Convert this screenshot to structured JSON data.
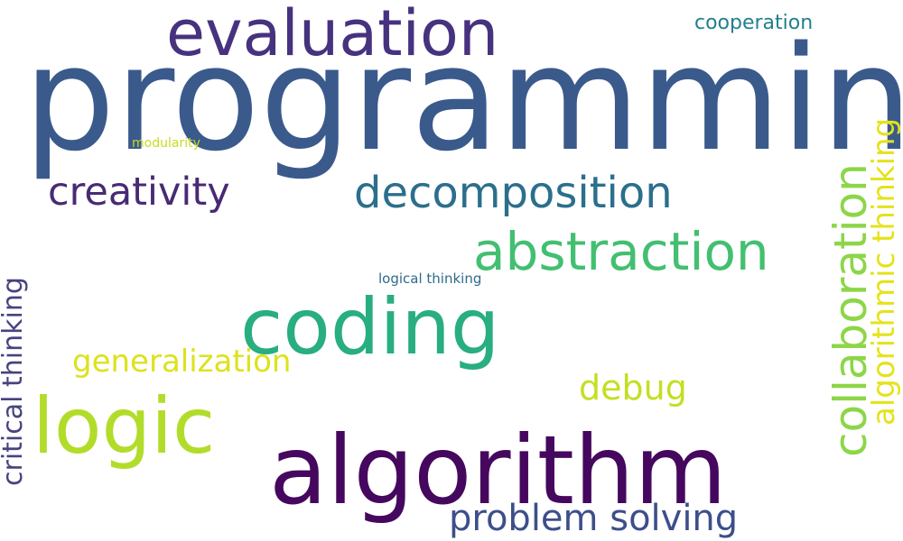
{
  "words": {
    "programming": {
      "text": "programming",
      "color": "#3b5a8c"
    },
    "evaluation": {
      "text": "evaluation",
      "color": "#46327e"
    },
    "cooperation": {
      "text": "cooperation",
      "color": "#21808d"
    },
    "modularity": {
      "text": "modularity",
      "color": "#c9dc1e"
    },
    "creativity": {
      "text": "creativity",
      "color": "#482a74"
    },
    "decomposition": {
      "text": "decomposition",
      "color": "#2b6f8c"
    },
    "abstraction": {
      "text": "abstraction",
      "color": "#43bf71"
    },
    "logical_thinking": {
      "text": "logical thinking",
      "color": "#2d6b8c"
    },
    "coding": {
      "text": "coding",
      "color": "#28ae80"
    },
    "generalization": {
      "text": "generalization",
      "color": "#dde21c"
    },
    "debug": {
      "text": "debug",
      "color": "#c4df22"
    },
    "logic": {
      "text": "logic",
      "color": "#b2dc2a"
    },
    "algorithm": {
      "text": "algorithm",
      "color": "#45085e"
    },
    "problem_solving": {
      "text": "problem solving",
      "color": "#3d4f8a"
    },
    "critical_thinking": {
      "text": "critical thinking",
      "color": "#46437f"
    },
    "collaboration": {
      "text": "collaboration",
      "color": "#8cd648"
    },
    "algorithmic_thinking": {
      "text": "algorithmic thinking",
      "color": "#e4e31a"
    }
  },
  "background": "#ffffff"
}
